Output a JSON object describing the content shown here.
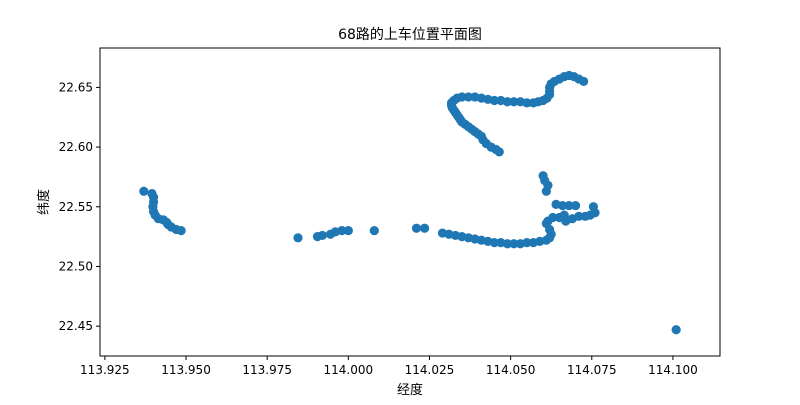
{
  "chart_data": {
    "type": "scatter",
    "title": "68路的上车位置平面图",
    "xlabel": "经度",
    "ylabel": "纬度",
    "xlim": [
      113.9235,
      114.1145
    ],
    "ylim": [
      22.425,
      22.683
    ],
    "xticks": [
      113.925,
      113.95,
      113.975,
      114.0,
      114.025,
      114.05,
      114.075,
      114.1
    ],
    "xtick_labels": [
      "113.925",
      "113.950",
      "113.975",
      "114.000",
      "114.025",
      "114.050",
      "114.075",
      "114.100"
    ],
    "yticks": [
      22.45,
      22.5,
      22.55,
      22.6,
      22.65
    ],
    "ytick_labels": [
      "22.45",
      "22.50",
      "22.55",
      "22.60",
      "22.65"
    ],
    "grid": false,
    "marker_color": "#1f77b4",
    "series": [
      {
        "points": [
          [
            113.937,
            22.563
          ],
          [
            113.9395,
            22.561
          ],
          [
            113.94,
            22.558
          ],
          [
            113.94,
            22.554
          ],
          [
            113.9398,
            22.55
          ],
          [
            113.94,
            22.546
          ],
          [
            113.9405,
            22.543
          ],
          [
            113.9415,
            22.54
          ],
          [
            113.943,
            22.539
          ],
          [
            113.944,
            22.537
          ],
          [
            113.9445,
            22.535
          ],
          [
            113.9455,
            22.533
          ],
          [
            113.947,
            22.531
          ],
          [
            113.9485,
            22.53
          ],
          [
            113.9845,
            22.524
          ],
          [
            113.9905,
            22.525
          ],
          [
            113.992,
            22.526
          ],
          [
            113.9945,
            22.527
          ],
          [
            113.996,
            22.529
          ],
          [
            113.998,
            22.53
          ],
          [
            114.0,
            22.53
          ],
          [
            114.008,
            22.53
          ],
          [
            114.021,
            22.532
          ],
          [
            114.0235,
            22.532
          ],
          [
            114.029,
            22.528
          ],
          [
            114.031,
            22.527
          ],
          [
            114.033,
            22.526
          ],
          [
            114.035,
            22.525
          ],
          [
            114.037,
            22.524
          ],
          [
            114.039,
            22.523
          ],
          [
            114.041,
            22.522
          ],
          [
            114.043,
            22.521
          ],
          [
            114.045,
            22.52
          ],
          [
            114.047,
            22.52
          ],
          [
            114.049,
            22.519
          ],
          [
            114.051,
            22.519
          ],
          [
            114.053,
            22.519
          ],
          [
            114.055,
            22.52
          ],
          [
            114.057,
            22.52
          ],
          [
            114.059,
            22.521
          ],
          [
            114.061,
            22.522
          ],
          [
            114.062,
            22.524
          ],
          [
            114.0625,
            22.527
          ],
          [
            114.062,
            22.531
          ],
          [
            114.061,
            22.536
          ],
          [
            114.0615,
            22.538
          ],
          [
            114.063,
            22.541
          ],
          [
            114.065,
            22.541
          ],
          [
            114.0665,
            22.543
          ],
          [
            114.067,
            22.538
          ],
          [
            114.069,
            22.54
          ],
          [
            114.071,
            22.542
          ],
          [
            114.073,
            22.542
          ],
          [
            114.0745,
            22.543
          ],
          [
            114.076,
            22.545
          ],
          [
            114.0755,
            22.55
          ],
          [
            114.07,
            22.551
          ],
          [
            114.068,
            22.551
          ],
          [
            114.066,
            22.551
          ],
          [
            114.064,
            22.552
          ],
          [
            114.061,
            22.563
          ],
          [
            114.0615,
            22.568
          ],
          [
            114.0605,
            22.572
          ],
          [
            114.06,
            22.576
          ],
          [
            114.0465,
            22.596
          ],
          [
            114.0455,
            22.598
          ],
          [
            114.044,
            22.6
          ],
          [
            114.0425,
            22.603
          ],
          [
            114.0415,
            22.606
          ],
          [
            114.041,
            22.609
          ],
          [
            114.04,
            22.611
          ],
          [
            114.039,
            22.613
          ],
          [
            114.038,
            22.615
          ],
          [
            114.037,
            22.617
          ],
          [
            114.036,
            22.619
          ],
          [
            114.035,
            22.621
          ],
          [
            114.0345,
            22.623
          ],
          [
            114.034,
            22.625
          ],
          [
            114.0335,
            22.627
          ],
          [
            114.033,
            22.629
          ],
          [
            114.0325,
            22.631
          ],
          [
            114.032,
            22.633
          ],
          [
            114.0318,
            22.635
          ],
          [
            114.0318,
            22.637
          ],
          [
            114.0325,
            22.639
          ],
          [
            114.0335,
            22.641
          ],
          [
            114.035,
            22.642
          ],
          [
            114.037,
            22.642
          ],
          [
            114.039,
            22.642
          ],
          [
            114.041,
            22.641
          ],
          [
            114.043,
            22.64
          ],
          [
            114.045,
            22.639
          ],
          [
            114.047,
            22.639
          ],
          [
            114.049,
            22.638
          ],
          [
            114.051,
            22.638
          ],
          [
            114.053,
            22.638
          ],
          [
            114.055,
            22.637
          ],
          [
            114.057,
            22.637
          ],
          [
            114.0585,
            22.638
          ],
          [
            114.06,
            22.639
          ],
          [
            114.0612,
            22.641
          ],
          [
            114.062,
            22.644
          ],
          [
            114.062,
            22.647
          ],
          [
            114.062,
            22.65
          ],
          [
            114.0625,
            22.653
          ],
          [
            114.0635,
            22.655
          ],
          [
            114.065,
            22.657
          ],
          [
            114.0665,
            22.659
          ],
          [
            114.068,
            22.66
          ],
          [
            114.0695,
            22.659
          ],
          [
            114.071,
            22.657
          ],
          [
            114.0725,
            22.655
          ],
          [
            114.101,
            22.447
          ]
        ]
      }
    ]
  }
}
